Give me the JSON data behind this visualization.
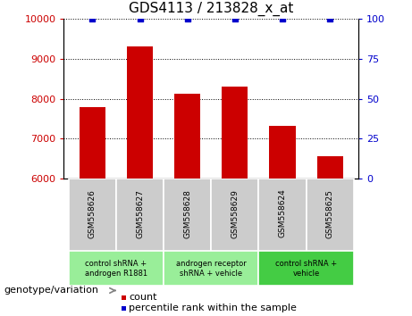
{
  "title": "GDS4113 / 213828_x_at",
  "samples": [
    "GSM558626",
    "GSM558627",
    "GSM558628",
    "GSM558629",
    "GSM558624",
    "GSM558625"
  ],
  "bar_values": [
    7780,
    9320,
    8120,
    8300,
    7330,
    6570
  ],
  "percentile_values": [
    100,
    100,
    100,
    100,
    100,
    100
  ],
  "bar_color": "#cc0000",
  "percentile_color": "#0000cc",
  "ylim_left": [
    6000,
    10000
  ],
  "ylim_right": [
    0,
    100
  ],
  "yticks_left": [
    6000,
    7000,
    8000,
    9000,
    10000
  ],
  "yticks_right": [
    0,
    25,
    50,
    75,
    100
  ],
  "group_info": [
    {
      "label": "control shRNA +\nandrogen R1881",
      "start": 0,
      "end": 2,
      "color": "#99ee99"
    },
    {
      "label": "androgen receptor\nshRNA + vehicle",
      "start": 2,
      "end": 4,
      "color": "#99ee99"
    },
    {
      "label": "control shRNA +\nvehicle",
      "start": 4,
      "end": 6,
      "color": "#44cc44"
    }
  ],
  "tick_color_left": "#cc0000",
  "tick_color_right": "#0000cc",
  "sample_bg_color": "#cccccc",
  "legend_count_color": "#cc0000",
  "legend_percentile_color": "#0000cc",
  "genotype_label": "genotype/variation"
}
